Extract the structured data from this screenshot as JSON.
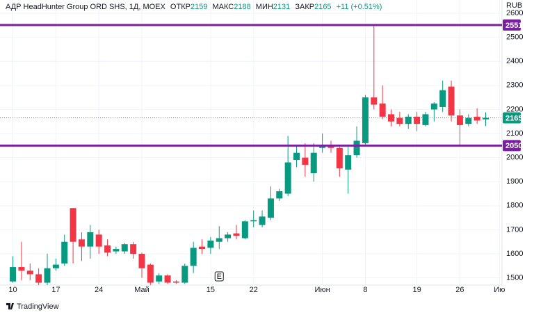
{
  "chart_data": {
    "type": "candlestick",
    "symbol": "АДР HeadHunter Group ORD SHS, 1Д, MOEX",
    "ohlc_labels": [
      "ОТКР",
      "МАКС",
      "МИН",
      "ЗАКР"
    ],
    "change": "+11 (+0.51%)",
    "currency": "RUB",
    "footer": "TradingView",
    "up_color": "#089981",
    "down_color": "#f23645",
    "grid": true,
    "open": [
      1485,
      1545,
      1530,
      1515,
      1480,
      1540,
      1560,
      1790,
      1660,
      1630,
      1680,
      1635,
      1610,
      1610,
      1640,
      1600,
      1555,
      1485,
      1510,
      1485,
      1480,
      1550,
      1630,
      1625,
      1650,
      1665,
      1685,
      1665,
      1735,
      1720,
      1750,
      1830,
      1850,
      1990,
      2000,
      1935,
      2040,
      2050,
      2040,
      1950,
      2010,
      2060,
      2250,
      2225,
      2180,
      2165,
      2140,
      2170,
      2135,
      2200,
      2210,
      2295,
      2175,
      2140,
      2170,
      2159
    ],
    "high": [
      1590,
      1650,
      1560,
      1540,
      1600,
      1580,
      1680,
      1790,
      1690,
      1720,
      1700,
      1660,
      1630,
      1645,
      1650,
      1605,
      1560,
      1520,
      1515,
      1490,
      1560,
      1650,
      1660,
      1670,
      1715,
      1690,
      1720,
      1740,
      1780,
      1780,
      1880,
      1870,
      2090,
      2050,
      2060,
      2060,
      2100,
      2070,
      2050,
      2050,
      2130,
      2260,
      2550,
      2300,
      2200,
      2190,
      2180,
      2190,
      2190,
      2230,
      2320,
      2320,
      2200,
      2180,
      2205,
      2188
    ],
    "low": [
      1480,
      1490,
      1490,
      1470,
      1470,
      1530,
      1550,
      1560,
      1570,
      1580,
      1600,
      1590,
      1600,
      1600,
      1580,
      1500,
      1470,
      1475,
      1475,
      1475,
      1475,
      1520,
      1600,
      1600,
      1620,
      1650,
      1660,
      1660,
      1710,
      1710,
      1740,
      1820,
      1840,
      1960,
      1920,
      1900,
      2020,
      2020,
      1920,
      1850,
      2000,
      2050,
      2200,
      2160,
      2130,
      2130,
      2120,
      2110,
      2130,
      2150,
      2190,
      2150,
      2050,
      2130,
      2140,
      2131
    ],
    "close": [
      1545,
      1530,
      1515,
      1480,
      1540,
      1555,
      1650,
      1650,
      1630,
      1690,
      1630,
      1605,
      1620,
      1640,
      1600,
      1540,
      1480,
      1510,
      1480,
      1480,
      1550,
      1625,
      1620,
      1655,
      1665,
      1680,
      1675,
      1735,
      1740,
      1755,
      1830,
      1860,
      1980,
      2020,
      1970,
      2020,
      2050,
      2040,
      1955,
      2010,
      2070,
      2250,
      2220,
      2170,
      2150,
      2140,
      2170,
      2140,
      2180,
      2225,
      2280,
      2175,
      2135,
      2165,
      2154,
      2165
    ],
    "xlim": [
      -1.5,
      56.9
    ],
    "xticks": [
      {
        "value": 0,
        "label": "10"
      },
      {
        "value": 5,
        "label": "17"
      },
      {
        "value": 10,
        "label": "24"
      },
      {
        "value": 15,
        "label": "Май"
      },
      {
        "value": 23,
        "label": "15"
      },
      {
        "value": 28,
        "label": "22"
      },
      {
        "value": 36,
        "label": "Июн"
      },
      {
        "value": 41,
        "label": "8"
      },
      {
        "value": 47,
        "label": "19"
      },
      {
        "value": 52,
        "label": "26"
      },
      {
        "value": 56.6,
        "label": "Ию"
      }
    ],
    "ylim": [
      1470,
      2655
    ],
    "yticks": [
      1500,
      1600,
      1700,
      1800,
      1900,
      2000,
      2100,
      2200,
      2300,
      2400,
      2500,
      2600
    ],
    "hlines": [
      {
        "value": 2551,
        "color": "#7b1fa2"
      },
      {
        "value": 2050,
        "color": "#7b1fa2"
      }
    ],
    "events": [
      {
        "x": 24,
        "label": "E"
      }
    ]
  }
}
